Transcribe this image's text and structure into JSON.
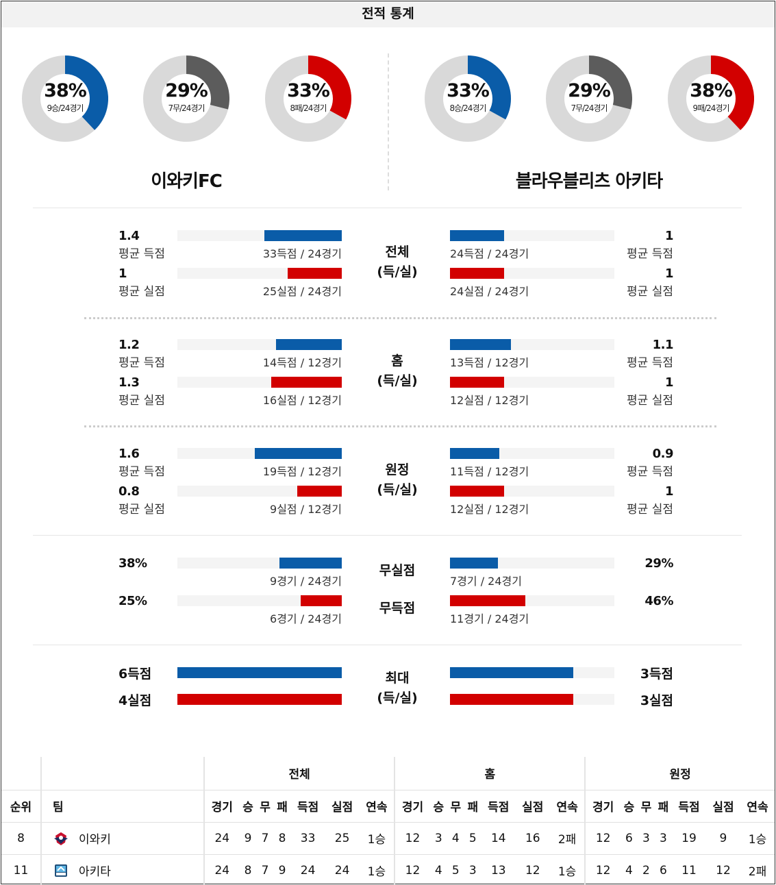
{
  "title": "전적 통계",
  "colors": {
    "win": "#0a5ca8",
    "draw": "#5c5c5c",
    "loss": "#d20000",
    "ring_bg": "#d9d9d9"
  },
  "teams": {
    "home": {
      "name": "이와키FC",
      "donuts": [
        {
          "pct": "38%",
          "sub": "9승/24경기",
          "value": 0.38,
          "kind": "win"
        },
        {
          "pct": "29%",
          "sub": "7무/24경기",
          "value": 0.29,
          "kind": "draw"
        },
        {
          "pct": "33%",
          "sub": "8패/24경기",
          "value": 0.33,
          "kind": "loss"
        }
      ]
    },
    "away": {
      "name": "블라우블리츠 아키타",
      "donuts": [
        {
          "pct": "33%",
          "sub": "8승/24경기",
          "value": 0.33,
          "kind": "win"
        },
        {
          "pct": "29%",
          "sub": "7무/24경기",
          "value": 0.29,
          "kind": "draw"
        },
        {
          "pct": "38%",
          "sub": "9패/24경기",
          "value": 0.38,
          "kind": "loss"
        }
      ]
    }
  },
  "sections": [
    {
      "cat": [
        "전체",
        "(득/실)"
      ],
      "rows": [
        {
          "lval": "1.4",
          "llbl": "평균 득점",
          "lcnt": "33득점 / 24경기",
          "lfill": 0.47,
          "rval": "1",
          "rlbl": "평균 득점",
          "rcnt": "24득점 / 24경기",
          "rfill": 0.33,
          "color": "win"
        },
        {
          "lval": "1",
          "llbl": "평균 실점",
          "lcnt": "25실점 / 24경기",
          "lfill": 0.33,
          "rval": "1",
          "rlbl": "평균 실점",
          "rcnt": "24실점 / 24경기",
          "rfill": 0.33,
          "color": "loss"
        }
      ]
    },
    {
      "cat": [
        "홈",
        "(득/실)"
      ],
      "rows": [
        {
          "lval": "1.2",
          "llbl": "평균 득점",
          "lcnt": "14득점 / 12경기",
          "lfill": 0.4,
          "rval": "1.1",
          "rlbl": "평균 득점",
          "rcnt": "13득점 / 12경기",
          "rfill": 0.37,
          "color": "win"
        },
        {
          "lval": "1.3",
          "llbl": "평균 실점",
          "lcnt": "16실점 / 12경기",
          "lfill": 0.43,
          "rval": "1",
          "rlbl": "평균 실점",
          "rcnt": "12실점 / 12경기",
          "rfill": 0.33,
          "color": "loss"
        }
      ]
    },
    {
      "cat": [
        "원정",
        "(득/실)"
      ],
      "rows": [
        {
          "lval": "1.6",
          "llbl": "평균 득점",
          "lcnt": "19득점 / 12경기",
          "lfill": 0.53,
          "rval": "0.9",
          "rlbl": "평균 득점",
          "rcnt": "11득점 / 12경기",
          "rfill": 0.3,
          "color": "win"
        },
        {
          "lval": "0.8",
          "llbl": "평균 실점",
          "lcnt": "9실점 / 12경기",
          "lfill": 0.27,
          "rval": "1",
          "rlbl": "평균 실점",
          "rcnt": "12실점 / 12경기",
          "rfill": 0.33,
          "color": "loss"
        }
      ]
    }
  ],
  "pct_rows": [
    {
      "cat": "무실점",
      "lval": "38%",
      "lcnt": "9경기 / 24경기",
      "lfill": 0.38,
      "rval": "29%",
      "rcnt": "7경기 / 24경기",
      "rfill": 0.29,
      "color": "win"
    },
    {
      "cat": "무득점",
      "lval": "25%",
      "lcnt": "6경기 / 24경기",
      "lfill": 0.25,
      "rval": "46%",
      "rcnt": "11경기 / 24경기",
      "rfill": 0.46,
      "color": "loss"
    }
  ],
  "max": {
    "cat": [
      "최대",
      "(득/실)"
    ],
    "rows": [
      {
        "lval": "6득점",
        "lfill": 1.0,
        "rval": "3득점",
        "rfill": 0.75,
        "color": "win"
      },
      {
        "lval": "4실점",
        "lfill": 1.0,
        "rval": "3실점",
        "rfill": 0.75,
        "color": "loss"
      }
    ]
  },
  "standings": {
    "groups": [
      "전체",
      "홈",
      "원정"
    ],
    "rank_header": "순위",
    "team_header": "팀",
    "cols": [
      "경기",
      "승",
      "무",
      "패",
      "득점",
      "실점",
      "연속"
    ],
    "rows": [
      {
        "rank": "8",
        "team": "이와키",
        "logo": "iwaki-logo-icon",
        "all": [
          "24",
          "9",
          "7",
          "8",
          "33",
          "25",
          "1승"
        ],
        "home": [
          "12",
          "3",
          "4",
          "5",
          "14",
          "16",
          "2패"
        ],
        "away": [
          "12",
          "6",
          "3",
          "3",
          "19",
          "9",
          "1승"
        ]
      },
      {
        "rank": "11",
        "team": "아키타",
        "logo": "akita-logo-icon",
        "all": [
          "24",
          "8",
          "7",
          "9",
          "24",
          "24",
          "1승"
        ],
        "home": [
          "12",
          "4",
          "5",
          "3",
          "13",
          "12",
          "1승"
        ],
        "away": [
          "12",
          "4",
          "2",
          "6",
          "11",
          "12",
          "2패"
        ]
      }
    ]
  }
}
